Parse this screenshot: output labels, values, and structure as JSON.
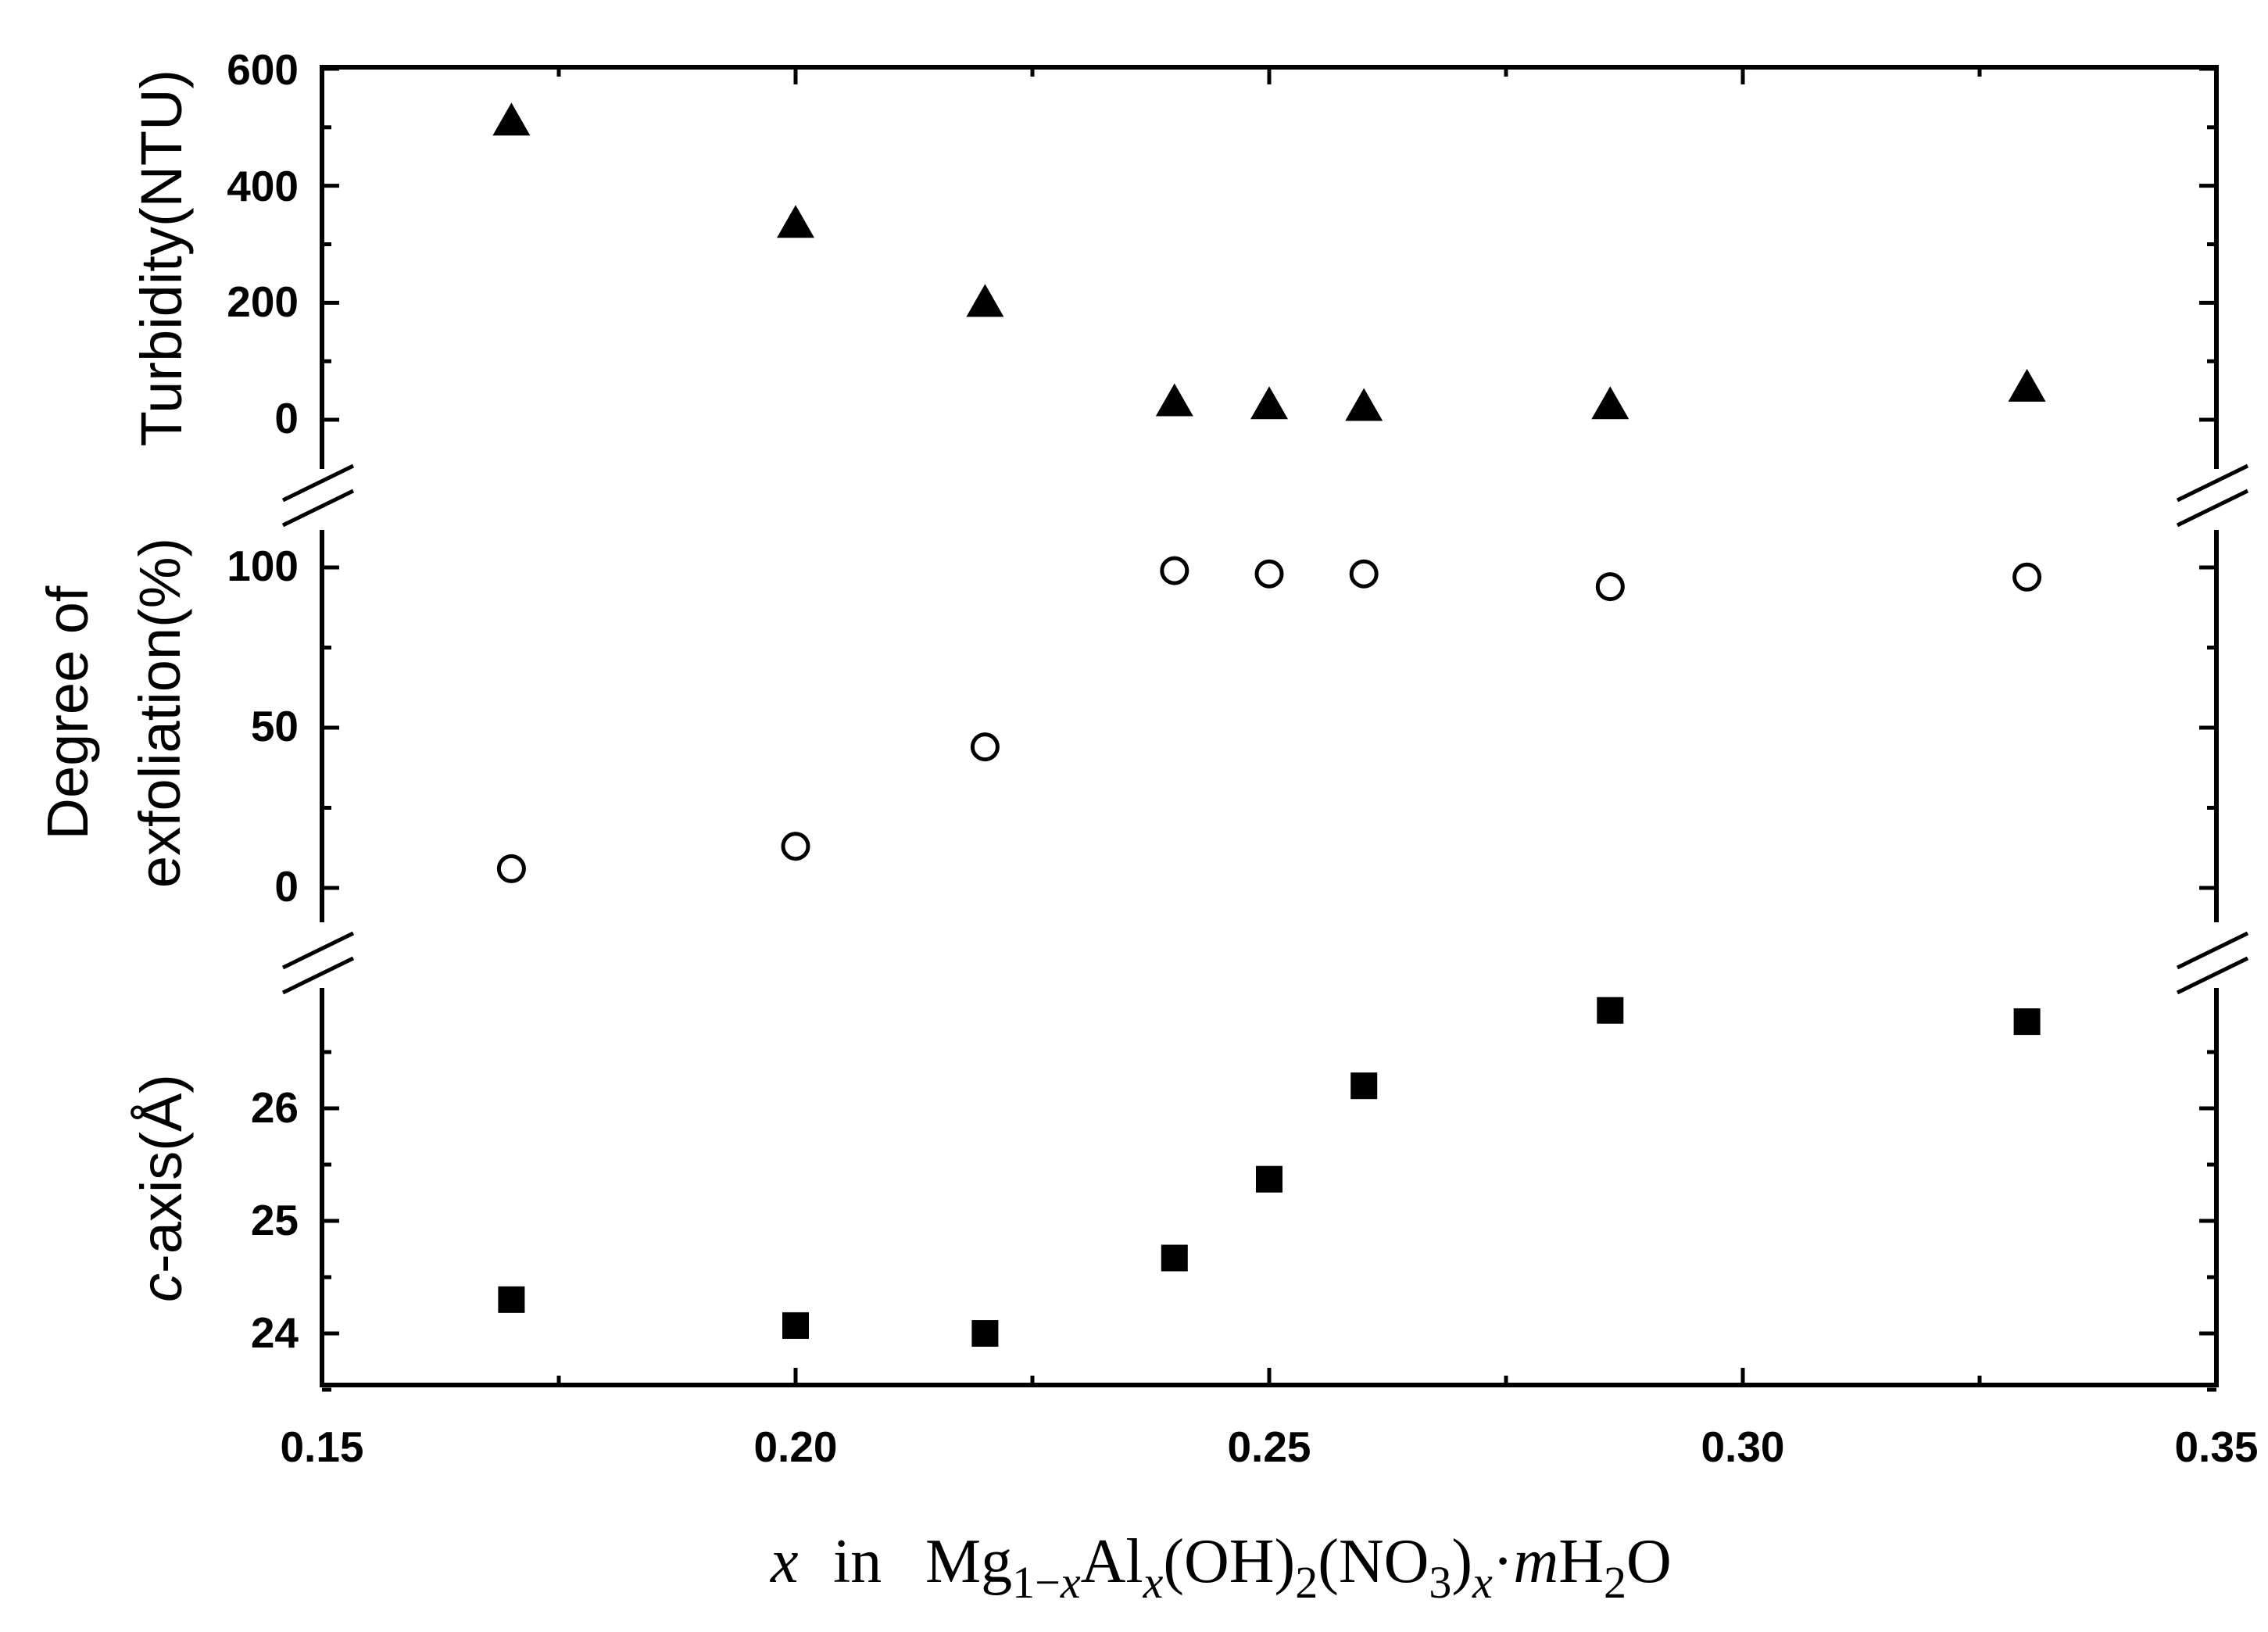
{
  "chart_data": {
    "type": "scatter",
    "x_title": {
      "var": "x",
      "in": "in",
      "formula": "Mg1−xAlx(OH)2(NO3)x·mH2O"
    },
    "x_range": [
      0.15,
      0.35
    ],
    "x_ticks": [
      "0.15",
      "0.20",
      "0.25",
      "0.30",
      "0.35"
    ],
    "panels": [
      {
        "id": "turbidity",
        "ylabel": "Turbidity(NTU)",
        "ylim": [
          -60,
          600
        ],
        "ticks": [
          "0",
          "200",
          "400",
          "600"
        ],
        "marker": "filled-triangle",
        "x": [
          0.17,
          0.2,
          0.22,
          0.24,
          0.25,
          0.26,
          0.286,
          0.33
        ],
        "y": [
          510,
          335,
          200,
          30,
          25,
          22,
          25,
          55
        ]
      },
      {
        "id": "exfoliation",
        "ylabel": [
          "Degree of",
          "exfoliation(%)"
        ],
        "ylim": [
          -10,
          110
        ],
        "ticks": [
          "0",
          "50",
          "100"
        ],
        "marker": "open-circle",
        "x": [
          0.17,
          0.2,
          0.22,
          0.24,
          0.25,
          0.26,
          0.286,
          0.33
        ],
        "y": [
          6,
          13,
          44,
          99,
          98,
          98,
          94,
          97
        ]
      },
      {
        "id": "c-axis",
        "ylabel": {
          "italic": "c",
          "rest": "-axis(Å)"
        },
        "ylim": [
          23.5,
          26.9
        ],
        "ticks": [
          "24",
          "25",
          "26"
        ],
        "marker": "filled-square",
        "x": [
          0.17,
          0.2,
          0.22,
          0.24,
          0.25,
          0.26,
          0.286,
          0.33
        ],
        "y": [
          24.3,
          24.07,
          24.0,
          24.67,
          25.37,
          26.2,
          26.87,
          26.77
        ]
      }
    ]
  }
}
